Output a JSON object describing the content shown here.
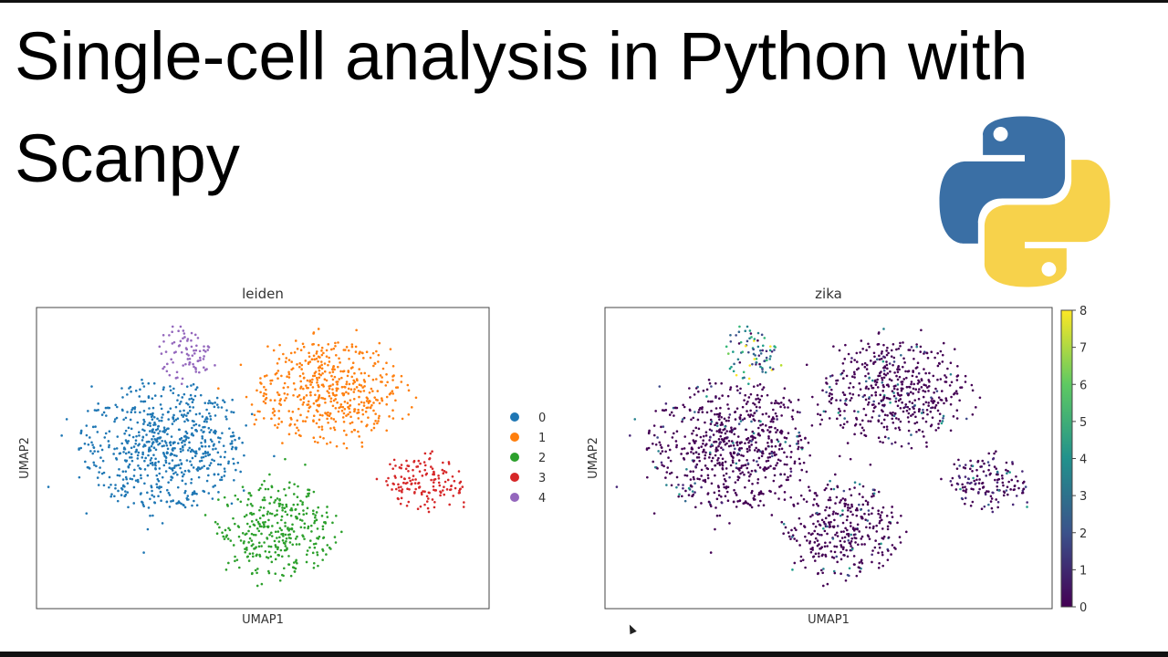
{
  "slide": {
    "title": "Single-cell analysis in Python with Scanpy",
    "logo": "python-logo"
  },
  "chart_data": [
    {
      "type": "scatter",
      "title": "leiden",
      "xlabel": "UMAP1",
      "ylabel": "UMAP2",
      "grid": false,
      "legend": {
        "placement": "right",
        "entries": [
          "0",
          "1",
          "2",
          "3",
          "4"
        ]
      },
      "colors": {
        "0": "#1f77b4",
        "1": "#ff7f0e",
        "2": "#2ca02c",
        "3": "#d62728",
        "4": "#9467bd"
      },
      "clusters": [
        {
          "label": "0",
          "center": [
            2.8,
            5.4
          ],
          "spread": [
            1.7,
            2.0
          ],
          "count": 700
        },
        {
          "label": "1",
          "center": [
            6.5,
            7.2
          ],
          "spread": [
            1.5,
            1.6
          ],
          "count": 500
        },
        {
          "label": "2",
          "center": [
            5.3,
            2.6
          ],
          "spread": [
            1.2,
            1.5
          ],
          "count": 350
        },
        {
          "label": "3",
          "center": [
            8.6,
            4.2
          ],
          "spread": [
            0.8,
            0.9
          ],
          "count": 150
        },
        {
          "label": "4",
          "center": [
            3.3,
            8.5
          ],
          "spread": [
            0.6,
            0.8
          ],
          "count": 80
        }
      ]
    },
    {
      "type": "scatter",
      "title": "zika",
      "xlabel": "UMAP1",
      "ylabel": "UMAP2",
      "grid": false,
      "colorbar": {
        "colormap": "viridis",
        "range": [
          0,
          8
        ],
        "ticks": [
          "0",
          "1",
          "2",
          "3",
          "4",
          "5",
          "6",
          "7",
          "8"
        ]
      },
      "typical_value_by_cluster": {
        "0": 0.3,
        "1": 0.3,
        "2": 0.4,
        "3": 0.6,
        "4": 5.5
      }
    }
  ]
}
